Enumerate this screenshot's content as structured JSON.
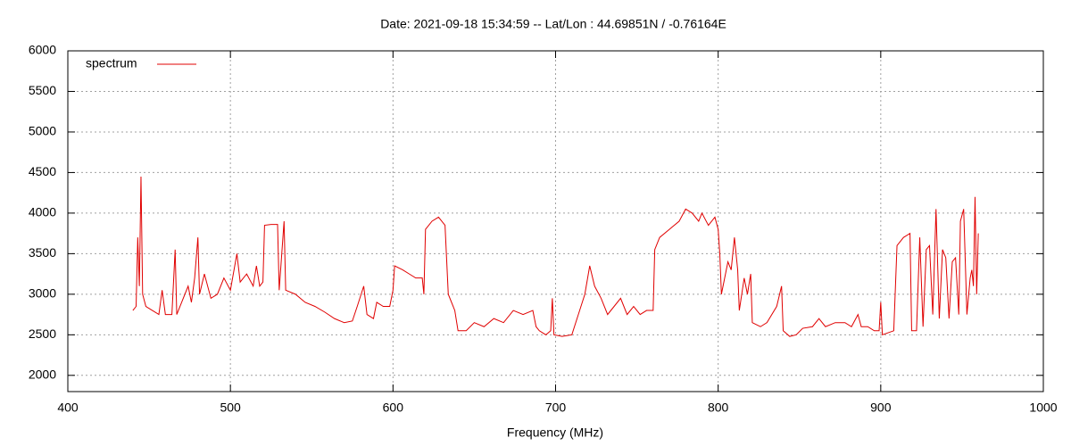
{
  "chart_data": {
    "type": "line",
    "title": "Date: 2021-09-18 15:34:59  --  Lat/Lon : 44.69851N / -0.76164E",
    "x_label": "Frequency (MHz)",
    "xlim": [
      400,
      1000
    ],
    "xticks": [
      400,
      500,
      600,
      700,
      800,
      900,
      1000
    ],
    "ylim": [
      1800,
      6000
    ],
    "yticks": [
      2000,
      2500,
      3000,
      3500,
      4000,
      4500,
      5000,
      5500,
      6000
    ],
    "grid": true,
    "legend": "top-left",
    "x": [
      440,
      442,
      443,
      444,
      445,
      446,
      448,
      452,
      456,
      458,
      460,
      464,
      466,
      467,
      470,
      474,
      476,
      478,
      480,
      481,
      484,
      488,
      492,
      496,
      500,
      504,
      506,
      510,
      514,
      516,
      518,
      520,
      521,
      525,
      529,
      530,
      533,
      534,
      540,
      546,
      552,
      558,
      564,
      570,
      575,
      578,
      582,
      584,
      588,
      590,
      594,
      598,
      600,
      601,
      606,
      610,
      614,
      618,
      619,
      620,
      624,
      628,
      632,
      634,
      638,
      640,
      645,
      650,
      656,
      662,
      668,
      674,
      680,
      686,
      688,
      690,
      694,
      697,
      698,
      699,
      704,
      710,
      714,
      718,
      721,
      724,
      728,
      732,
      736,
      740,
      744,
      748,
      752,
      756,
      760,
      761,
      764,
      770,
      776,
      780,
      784,
      788,
      790,
      794,
      798,
      800,
      801,
      802,
      806,
      808,
      810,
      812,
      813,
      816,
      818,
      820,
      821,
      826,
      830,
      836,
      839,
      840,
      844,
      848,
      852,
      858,
      862,
      866,
      872,
      878,
      882,
      886,
      888,
      892,
      896,
      899,
      900,
      901,
      908,
      910,
      914,
      918,
      919,
      922,
      924,
      926,
      928,
      930,
      932,
      934,
      936,
      938,
      940,
      942,
      944,
      946,
      948,
      949,
      951,
      953,
      955,
      956,
      957,
      958,
      959,
      960
    ],
    "series": [
      {
        "name": "spectrum",
        "color": "#e00000",
        "values": [
          2800,
          2850,
          3700,
          3100,
          4450,
          3000,
          2850,
          2800,
          2750,
          3050,
          2750,
          2750,
          3550,
          2750,
          2900,
          3100,
          2900,
          3200,
          3700,
          3000,
          3250,
          2950,
          3000,
          3200,
          3050,
          3500,
          3150,
          3250,
          3100,
          3350,
          3100,
          3150,
          3850,
          3860,
          3860,
          3050,
          3900,
          3050,
          3000,
          2900,
          2850,
          2780,
          2700,
          2650,
          2670,
          2850,
          3100,
          2750,
          2700,
          2900,
          2850,
          2850,
          3050,
          3350,
          3300,
          3250,
          3200,
          3200,
          3000,
          3800,
          3900,
          3950,
          3850,
          3000,
          2800,
          2550,
          2550,
          2650,
          2600,
          2700,
          2650,
          2800,
          2750,
          2800,
          2600,
          2550,
          2500,
          2550,
          2950,
          2500,
          2480,
          2500,
          2750,
          3000,
          3350,
          3100,
          2950,
          2750,
          2850,
          2950,
          2750,
          2850,
          2750,
          2800,
          2800,
          3550,
          3700,
          3800,
          3900,
          4050,
          4000,
          3900,
          4000,
          3850,
          3950,
          3800,
          3500,
          3000,
          3400,
          3300,
          3700,
          3300,
          2800,
          3200,
          3000,
          3250,
          2650,
          2600,
          2650,
          2850,
          3100,
          2550,
          2480,
          2500,
          2580,
          2600,
          2700,
          2600,
          2650,
          2650,
          2600,
          2750,
          2600,
          2600,
          2550,
          2550,
          2900,
          2500,
          2550,
          3600,
          3700,
          3750,
          2550,
          2550,
          3700,
          2600,
          3550,
          3600,
          2750,
          4050,
          2700,
          3550,
          3450,
          2700,
          3400,
          3450,
          2750,
          3900,
          4050,
          2750,
          3200,
          3300,
          3100,
          4200,
          3000,
          3750
        ]
      }
    ]
  }
}
